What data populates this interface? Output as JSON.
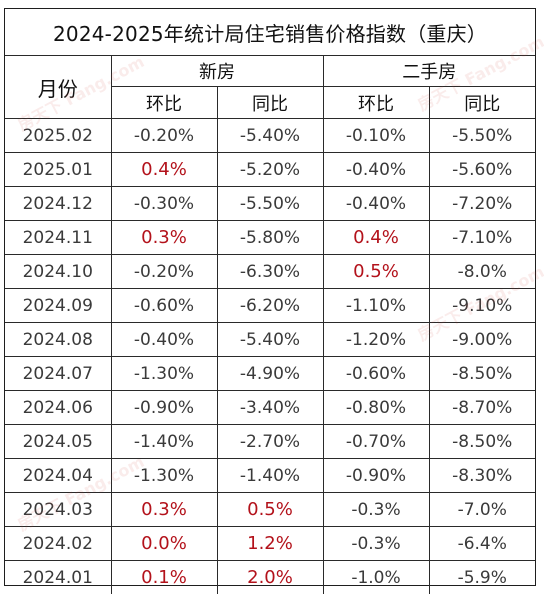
{
  "title": "2024-2025年统计局住宅销售价格指数（重庆）",
  "headers": {
    "month": "月份",
    "new_house": "新房",
    "second_hand": "二手房",
    "mom": "环比",
    "yoy": "同比"
  },
  "rows": [
    {
      "month": "2025.02",
      "new_mom": "-0.20%",
      "new_yoy": "-5.40%",
      "sec_mom": "-0.10%",
      "sec_yoy": "-5.50%"
    },
    {
      "month": "2025.01",
      "new_mom": "0.4%",
      "new_yoy": "-5.20%",
      "sec_mom": "-0.40%",
      "sec_yoy": "-5.60%"
    },
    {
      "month": "2024.12",
      "new_mom": "-0.30%",
      "new_yoy": "-5.50%",
      "sec_mom": "-0.40%",
      "sec_yoy": "-7.20%"
    },
    {
      "month": "2024.11",
      "new_mom": "0.3%",
      "new_yoy": "-5.80%",
      "sec_mom": "0.4%",
      "sec_yoy": "-7.10%"
    },
    {
      "month": "2024.10",
      "new_mom": "-0.20%",
      "new_yoy": "-6.30%",
      "sec_mom": "0.5%",
      "sec_yoy": "-8.0%"
    },
    {
      "month": "2024.09",
      "new_mom": "-0.60%",
      "new_yoy": "-6.20%",
      "sec_mom": "-1.10%",
      "sec_yoy": "-9.10%"
    },
    {
      "month": "2024.08",
      "new_mom": "-0.40%",
      "new_yoy": "-5.40%",
      "sec_mom": "-1.20%",
      "sec_yoy": "-9.00%"
    },
    {
      "month": "2024.07",
      "new_mom": "-1.30%",
      "new_yoy": "-4.90%",
      "sec_mom": "-0.60%",
      "sec_yoy": "-8.50%"
    },
    {
      "month": "2024.06",
      "new_mom": "-0.90%",
      "new_yoy": "-3.40%",
      "sec_mom": "-0.80%",
      "sec_yoy": "-8.70%"
    },
    {
      "month": "2024.05",
      "new_mom": "-1.40%",
      "new_yoy": "-2.70%",
      "sec_mom": "-0.70%",
      "sec_yoy": "-8.50%"
    },
    {
      "month": "2024.04",
      "new_mom": "-1.30%",
      "new_yoy": "-1.40%",
      "sec_mom": "-0.90%",
      "sec_yoy": "-8.30%"
    },
    {
      "month": "2024.03",
      "new_mom": "0.3%",
      "new_yoy": "0.5%",
      "sec_mom": "-0.3%",
      "sec_yoy": "-7.0%"
    },
    {
      "month": "2024.02",
      "new_mom": "0.0%",
      "new_yoy": "1.2%",
      "sec_mom": "-0.3%",
      "sec_yoy": "-6.4%"
    },
    {
      "month": "2024.01",
      "new_mom": "0.1%",
      "new_yoy": "2.0%",
      "sec_mom": "-1.0%",
      "sec_yoy": "-5.9%"
    }
  ],
  "colors": {
    "highlight": "#b3121b",
    "text": "#3a3a3a",
    "border": "#2a2a2a"
  },
  "watermark": "房天下 Fang.com"
}
